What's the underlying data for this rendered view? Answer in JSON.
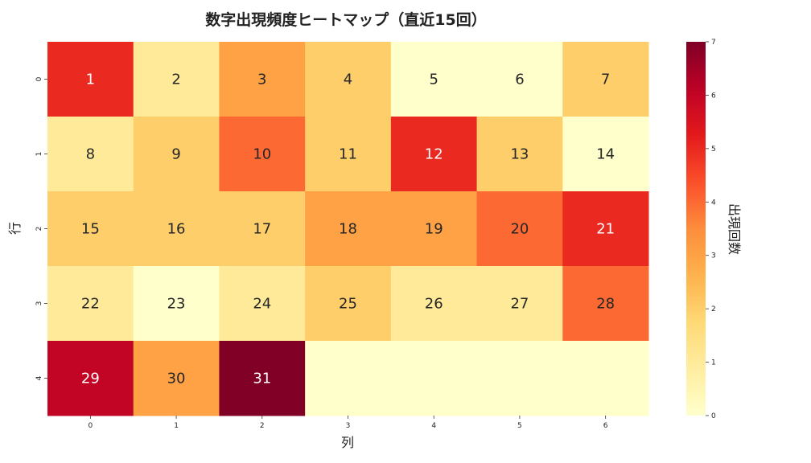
{
  "chart_data": {
    "type": "heatmap",
    "title": "数字出現頻度ヒートマップ（直近15回）",
    "xlabel": "列",
    "ylabel": "行",
    "x_ticks": [
      "0",
      "1",
      "2",
      "3",
      "4",
      "5",
      "6"
    ],
    "y_ticks": [
      "0",
      "1",
      "2",
      "3",
      "4"
    ],
    "cell_labels": [
      [
        "1",
        "2",
        "3",
        "4",
        "5",
        "6",
        "7"
      ],
      [
        "8",
        "9",
        "10",
        "11",
        "12",
        "13",
        "14"
      ],
      [
        "15",
        "16",
        "17",
        "18",
        "19",
        "20",
        "21"
      ],
      [
        "22",
        "23",
        "24",
        "25",
        "26",
        "27",
        "28"
      ],
      [
        "29",
        "30",
        "31",
        "",
        "",
        "",
        ""
      ]
    ],
    "values": [
      [
        5,
        1,
        3,
        2,
        0,
        0,
        2
      ],
      [
        1,
        2,
        4,
        2,
        5,
        2,
        0
      ],
      [
        2,
        2,
        2,
        3,
        3,
        4,
        5
      ],
      [
        1,
        0,
        1,
        2,
        1,
        1,
        4
      ],
      [
        6,
        3,
        7,
        0,
        0,
        0,
        0
      ]
    ],
    "colorbar": {
      "label": "出現回数",
      "min": 0,
      "max": 7,
      "ticks": [
        "0",
        "1",
        "2",
        "3",
        "4",
        "5",
        "6",
        "7"
      ],
      "colormap": "YlOrRd"
    },
    "grid": false
  }
}
